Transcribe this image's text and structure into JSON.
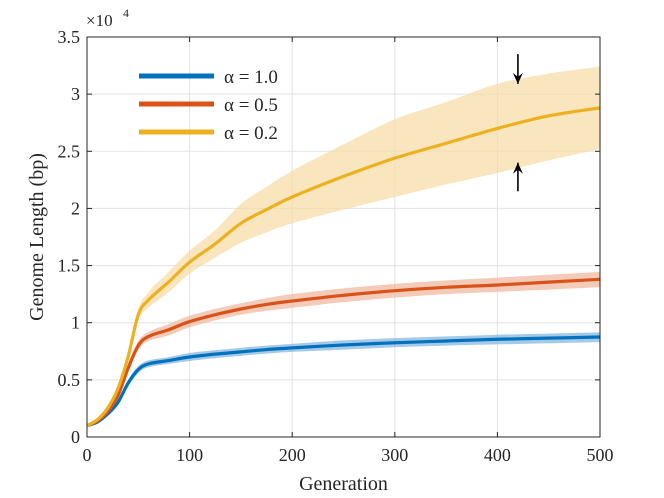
{
  "chart_data": {
    "type": "line",
    "title": "",
    "xlabel": "Generation",
    "ylabel": "Genome Length (bp)",
    "xlim": [
      0,
      500
    ],
    "ylim": [
      0,
      35000
    ],
    "xticks": [
      0,
      100,
      200,
      300,
      400,
      500
    ],
    "xtick_labels": [
      "0",
      "100",
      "200",
      "300",
      "400",
      "500"
    ],
    "yticks": [
      0,
      5000,
      10000,
      15000,
      20000,
      25000,
      30000,
      35000
    ],
    "ytick_labels": [
      "0",
      "0.5",
      "1",
      "1.5",
      "2",
      "2.5",
      "3",
      "3.5"
    ],
    "y_exponent_label": "×10",
    "y_exponent_power": "4",
    "grid": true,
    "legend_position": "top-left",
    "x": [
      0,
      10,
      20,
      30,
      40,
      50,
      60,
      80,
      100,
      125,
      150,
      175,
      200,
      250,
      300,
      350,
      400,
      450,
      500
    ],
    "series": [
      {
        "name": "α = 1.0",
        "color": "#0072BD",
        "band_color": "#7FB4DD",
        "values": [
          1000,
          1300,
          2000,
          3000,
          4700,
          5900,
          6400,
          6700,
          7000,
          7250,
          7450,
          7650,
          7800,
          8050,
          8250,
          8400,
          8550,
          8650,
          8750
        ],
        "lower": [
          900,
          1200,
          1850,
          2800,
          4400,
          5600,
          6100,
          6400,
          6650,
          6900,
          7100,
          7300,
          7450,
          7650,
          7850,
          8000,
          8100,
          8200,
          8300
        ],
        "upper": [
          1100,
          1400,
          2150,
          3200,
          5000,
          6200,
          6700,
          7000,
          7350,
          7600,
          7800,
          8000,
          8150,
          8450,
          8650,
          8800,
          8950,
          9050,
          9150
        ]
      },
      {
        "name": "α = 0.5",
        "color": "#D95319",
        "band_color": "#F0B39B",
        "values": [
          1000,
          1400,
          2200,
          3600,
          6000,
          8000,
          8800,
          9400,
          10100,
          10700,
          11200,
          11600,
          11900,
          12400,
          12800,
          13100,
          13300,
          13550,
          13800
        ],
        "lower": [
          900,
          1250,
          2000,
          3300,
          5600,
          7600,
          8400,
          8900,
          9600,
          10200,
          10700,
          11050,
          11300,
          11800,
          12200,
          12500,
          12700,
          12900,
          13100
        ],
        "upper": [
          1100,
          1550,
          2400,
          3900,
          6400,
          8400,
          9200,
          9900,
          10600,
          11200,
          11700,
          12150,
          12500,
          13000,
          13400,
          13700,
          13950,
          14200,
          14450
        ]
      },
      {
        "name": "α = 0.2",
        "color": "#EDB120",
        "band_color": "#F7DCA3",
        "values": [
          1000,
          1500,
          2500,
          4200,
          7000,
          10700,
          12000,
          13600,
          15300,
          16900,
          18700,
          19900,
          21000,
          22800,
          24400,
          25700,
          27000,
          28100,
          28800
        ],
        "lower": [
          900,
          1350,
          2250,
          3850,
          6500,
          10200,
          11300,
          12700,
          14300,
          15700,
          17000,
          17900,
          18700,
          19900,
          21000,
          22100,
          23100,
          24200,
          25200
        ],
        "upper": [
          1100,
          1650,
          2750,
          4550,
          7500,
          11200,
          12700,
          14500,
          16300,
          18100,
          20400,
          21900,
          23300,
          25600,
          27800,
          29300,
          30900,
          31800,
          32400
        ]
      }
    ],
    "annotations": [
      {
        "type": "arrow-down",
        "x": 420,
        "y": 33500,
        "to_y": 30900
      },
      {
        "type": "arrow-up",
        "x": 420,
        "y": 21500,
        "to_y": 24000
      }
    ]
  }
}
